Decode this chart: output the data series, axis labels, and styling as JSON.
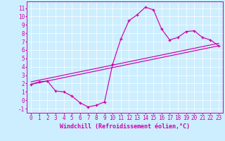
{
  "xlabel": "Windchill (Refroidissement éolien,°C)",
  "background_color": "#cceeff",
  "line_color": "#cc00aa",
  "grid_color": "#ffffff",
  "xlim_min": -0.5,
  "xlim_max": 23.5,
  "ylim_min": -1.5,
  "ylim_max": 11.8,
  "xticks": [
    0,
    1,
    2,
    3,
    4,
    5,
    6,
    7,
    8,
    9,
    10,
    11,
    12,
    13,
    14,
    15,
    16,
    17,
    18,
    19,
    20,
    21,
    22,
    23
  ],
  "yticks": [
    -1,
    0,
    1,
    2,
    3,
    4,
    5,
    6,
    7,
    8,
    9,
    10,
    11
  ],
  "curve_main_x": [
    0,
    1,
    2,
    3,
    4,
    5,
    6,
    7,
    8,
    9,
    10,
    11,
    12,
    13,
    14,
    15,
    16,
    17,
    18,
    19,
    20,
    21,
    22,
    23
  ],
  "curve_main_y": [
    1.9,
    2.2,
    2.3,
    1.1,
    1.0,
    0.5,
    -0.3,
    -0.8,
    -0.6,
    -0.2,
    4.3,
    7.3,
    9.5,
    10.2,
    11.1,
    10.8,
    8.5,
    7.2,
    7.5,
    8.2,
    8.3,
    7.5,
    7.2,
    6.5
  ],
  "curve_line1_x": [
    0,
    23
  ],
  "curve_line1_y": [
    1.9,
    6.5
  ],
  "curve_line2_x": [
    0,
    23
  ],
  "curve_line2_y": [
    2.2,
    6.8
  ],
  "font_size": 6,
  "tick_font_size": 5.5,
  "xlabel_font_size": 6
}
